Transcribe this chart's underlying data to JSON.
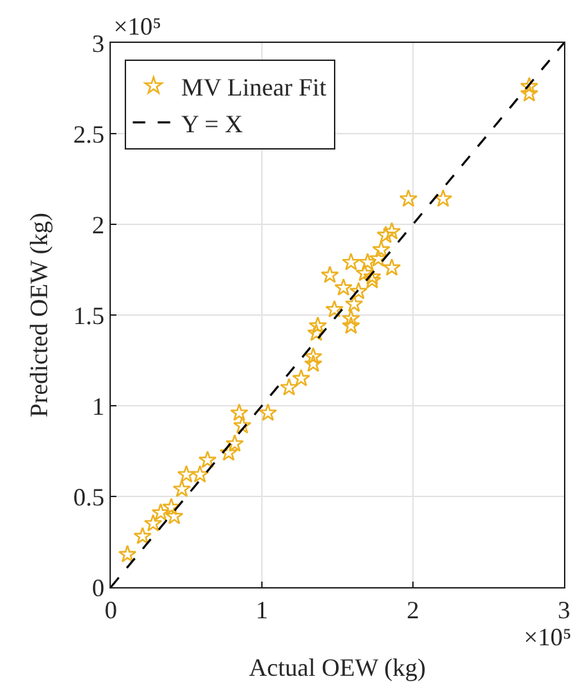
{
  "chart_data": {
    "type": "scatter",
    "xlabel": "Actual OEW (kg)",
    "ylabel": "Predicted OEW (kg)",
    "xlim": [
      0,
      3
    ],
    "ylim": [
      0,
      3
    ],
    "xticks": [
      0,
      1,
      2,
      3
    ],
    "yticks": [
      0,
      0.5,
      1,
      1.5,
      2,
      2.5,
      3
    ],
    "grid": true,
    "legend": "top left",
    "annotations": [
      "×10⁵",
      "×10⁵"
    ],
    "series": [
      {
        "name": "MV Linear Fit",
        "type": "scatter",
        "marker": "star",
        "color": "#edb120",
        "x": [
          0.11,
          0.21,
          0.28,
          0.4,
          0.42,
          0.33,
          0.47,
          0.5,
          0.59,
          0.64,
          0.82,
          0.85,
          0.87,
          0.78,
          1.04,
          1.97,
          2.2,
          1.18,
          1.26,
          1.34,
          1.34,
          1.36,
          1.37,
          1.48,
          1.59,
          1.59,
          1.61,
          1.45,
          1.54,
          1.64,
          1.59,
          1.73,
          1.7,
          1.77,
          1.82,
          1.86,
          1.86,
          1.79,
          1.68,
          1.73,
          2.77,
          2.77
        ],
        "values": [
          0.18,
          0.28,
          0.35,
          0.44,
          0.39,
          0.41,
          0.54,
          0.62,
          0.62,
          0.7,
          0.79,
          0.96,
          0.89,
          0.74,
          0.96,
          2.14,
          2.14,
          1.1,
          1.15,
          1.27,
          1.23,
          1.4,
          1.44,
          1.53,
          1.44,
          1.48,
          1.56,
          1.72,
          1.65,
          1.63,
          1.79,
          1.69,
          1.79,
          1.81,
          1.94,
          1.96,
          1.76,
          1.86,
          1.73,
          1.71,
          2.76,
          2.72
        ]
      },
      {
        "name": "Y = X",
        "type": "line",
        "color": "#000000",
        "line_style": "dashed",
        "x": [
          0,
          3
        ],
        "values": [
          0,
          3
        ]
      }
    ]
  }
}
